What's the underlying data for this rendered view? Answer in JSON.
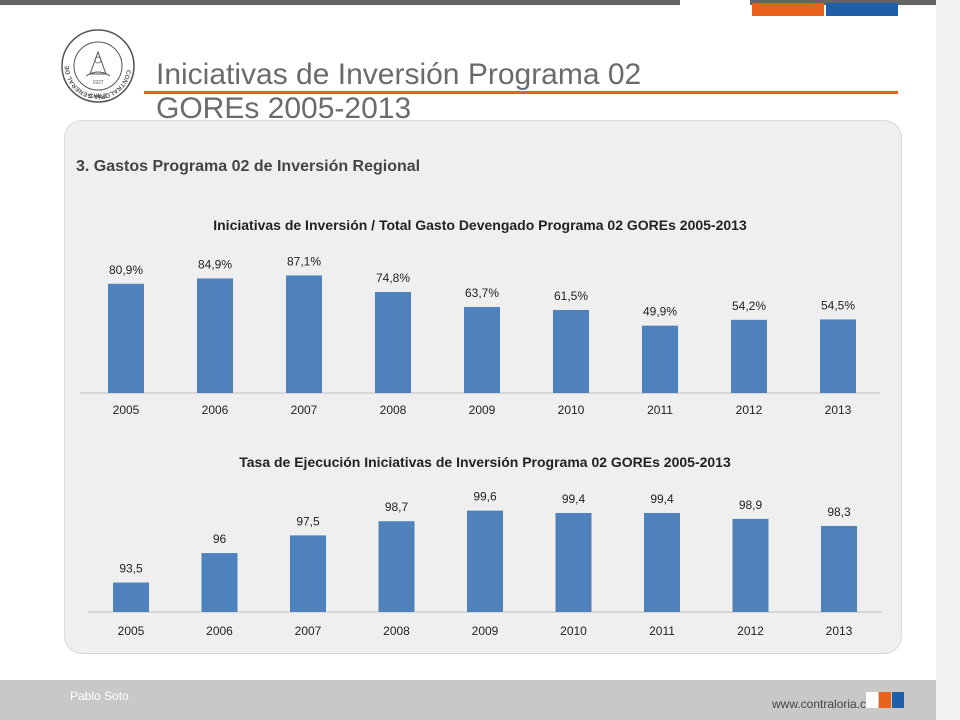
{
  "header": {
    "title_line1": "Iniciativas de Inversión Programa 02",
    "title_line2": "GOREs 2005-2013",
    "logo_text": "CONTRALORIA GENERAL DE LA REPUBLICA",
    "logo_subtext": "CHILE",
    "logo_year": "1927"
  },
  "section": {
    "title": "3. Gastos Programa 02 de Inversión Regional"
  },
  "colors": {
    "bar": "#4f81bd",
    "accent_orange": "#e8621c",
    "accent_blue": "#1f5ea8",
    "title_text": "#6b6b6b"
  },
  "chart_data": [
    {
      "type": "bar",
      "title": "Iniciativas de Inversión / Total Gasto Devengado Programa 02 GOREs 2005-2013",
      "categories": [
        "2005",
        "2006",
        "2007",
        "2008",
        "2009",
        "2010",
        "2011",
        "2012",
        "2013"
      ],
      "values": [
        80.9,
        84.9,
        87.1,
        74.8,
        63.7,
        61.5,
        49.9,
        54.2,
        54.5
      ],
      "data_labels": [
        "80,9%",
        "84,9%",
        "87,1%",
        "74,8%",
        "63,7%",
        "61,5%",
        "49,9%",
        "54,2%",
        "54,5%"
      ],
      "xlabel": "",
      "ylabel": "",
      "ylim": [
        0,
        100
      ],
      "grid": false
    },
    {
      "type": "bar",
      "title": "Tasa de Ejecución Iniciativas de Inversión Programa 02 GOREs 2005-2013",
      "categories": [
        "2005",
        "2006",
        "2007",
        "2008",
        "2009",
        "2010",
        "2011",
        "2012",
        "2013"
      ],
      "values": [
        93.5,
        96,
        97.5,
        98.7,
        99.6,
        99.4,
        99.4,
        98.9,
        98.3
      ],
      "data_labels": [
        "93,5",
        "96",
        "97,5",
        "98,7",
        "99,6",
        "99,4",
        "99,4",
        "98,9",
        "98,3"
      ],
      "xlabel": "",
      "ylabel": "",
      "ylim": [
        91,
        100.5
      ],
      "grid": false
    }
  ],
  "footer": {
    "author": "Pablo Soto",
    "url": "www.contraloria.cl"
  }
}
